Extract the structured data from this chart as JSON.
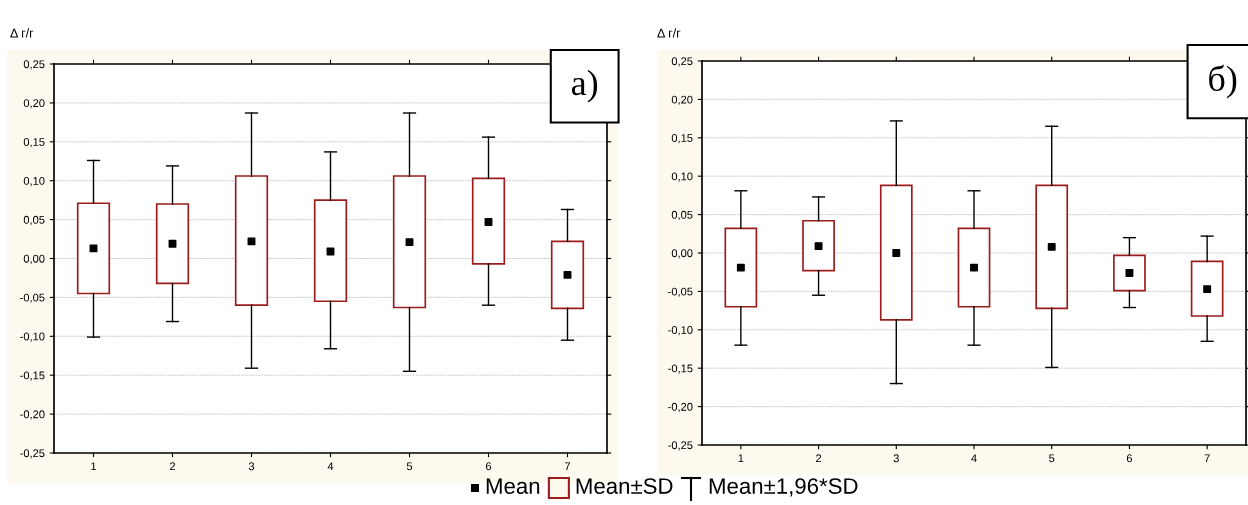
{
  "chart_data": [
    {
      "type": "box",
      "ylabel": "Δ г/г",
      "categories": [
        "1",
        "2",
        "3",
        "4",
        "5",
        "6",
        "7"
      ],
      "boxes": [
        {
          "low": -0.101,
          "q1": -0.045,
          "median": 0.013,
          "q3": 0.071,
          "high": 0.126
        },
        {
          "low": -0.081,
          "q1": -0.032,
          "median": 0.019,
          "q3": 0.07,
          "high": 0.119
        },
        {
          "low": -0.141,
          "q1": -0.06,
          "median": 0.022,
          "q3": 0.106,
          "high": 0.187
        },
        {
          "low": -0.116,
          "q1": -0.055,
          "median": 0.009,
          "q3": 0.075,
          "high": 0.137
        },
        {
          "low": -0.145,
          "q1": -0.063,
          "median": 0.021,
          "q3": 0.106,
          "high": 0.187
        },
        {
          "low": -0.06,
          "q1": -0.007,
          "median": 0.047,
          "q3": 0.103,
          "high": 0.156
        },
        {
          "low": -0.105,
          "q1": -0.064,
          "median": -0.021,
          "q3": 0.022,
          "high": 0.063
        }
      ],
      "color": "#9b1c1c",
      "ylim": [
        -0.25,
        0.25
      ],
      "yticks": [
        {
          "value": -0.25,
          "label": "-0,25"
        },
        {
          "value": -0.2,
          "label": "-0,20"
        },
        {
          "value": -0.15,
          "label": "-0,15"
        },
        {
          "value": -0.1,
          "label": "-0,10"
        },
        {
          "value": -0.05,
          "label": "-0,05"
        },
        {
          "value": 0,
          "label": "0,00"
        },
        {
          "value": 0.05,
          "label": "0,05"
        },
        {
          "value": 0.1,
          "label": "0,10"
        },
        {
          "value": 0.15,
          "label": "0,15"
        },
        {
          "value": 0.2,
          "label": "0,20"
        },
        {
          "value": 0.25,
          "label": "0,25"
        }
      ],
      "grid": "y",
      "marker": "square",
      "annotations": [
        "a)",
        "Mean",
        "Mean±SD",
        "Mean±1,96*SD"
      ]
    },
    {
      "type": "box",
      "ylabel": "Δ г/г",
      "categories": [
        "1",
        "2",
        "3",
        "4",
        "5",
        "6",
        "7"
      ],
      "boxes": [
        {
          "low": -0.12,
          "q1": -0.07,
          "median": -0.019,
          "q3": 0.032,
          "high": 0.081
        },
        {
          "low": -0.055,
          "q1": -0.023,
          "median": 0.009,
          "q3": 0.042,
          "high": 0.073
        },
        {
          "low": -0.17,
          "q1": -0.087,
          "median": 0.0,
          "q3": 0.088,
          "high": 0.172
        },
        {
          "low": -0.12,
          "q1": -0.07,
          "median": -0.019,
          "q3": 0.032,
          "high": 0.081
        },
        {
          "low": -0.149,
          "q1": -0.072,
          "median": 0.008,
          "q3": 0.088,
          "high": 0.165
        },
        {
          "low": -0.071,
          "q1": -0.049,
          "median": -0.026,
          "q3": -0.003,
          "high": 0.02
        },
        {
          "low": -0.115,
          "q1": -0.082,
          "median": -0.047,
          "q3": -0.011,
          "high": 0.022
        }
      ],
      "color": "#9b1c1c",
      "ylim": [
        -0.25,
        0.25
      ],
      "yticks": [
        {
          "value": -0.25,
          "label": "-0,25"
        },
        {
          "value": -0.2,
          "label": "-0,20"
        },
        {
          "value": -0.15,
          "label": "-0,15"
        },
        {
          "value": -0.1,
          "label": "-0,10"
        },
        {
          "value": -0.05,
          "label": "-0,05"
        },
        {
          "value": 0,
          "label": "0,00"
        },
        {
          "value": 0.05,
          "label": "0,05"
        },
        {
          "value": 0.1,
          "label": "0,10"
        },
        {
          "value": 0.15,
          "label": "0,15"
        },
        {
          "value": 0.2,
          "label": "0,20"
        },
        {
          "value": 0.25,
          "label": "0,25"
        }
      ],
      "grid": "y",
      "marker": "square",
      "annotations": [
        "б)"
      ]
    }
  ]
}
